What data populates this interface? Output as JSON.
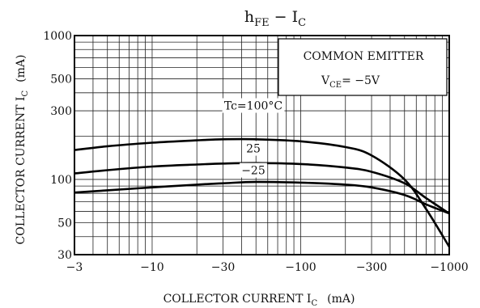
{
  "chart_data": {
    "type": "line",
    "title": {
      "main": "h",
      "main_sub": "FE",
      "sep": " − I",
      "sep_sub": "C"
    },
    "xlabel": {
      "main": "COLLECTOR CURRENT   I",
      "sub": "C",
      "unit": "(mA)"
    },
    "ylabel": {
      "main": "COLLECTOR CURRENT   I",
      "sub": "C",
      "unit": "(mA)"
    },
    "x_scale": "log",
    "x_direction": "magnitude increases to the right (negative currents)",
    "xlim": [
      -3,
      -1000
    ],
    "ylim": [
      30,
      1000
    ],
    "y_scale": "log",
    "x_ticks": [
      -3,
      -10,
      -30,
      -100,
      -300,
      -1000
    ],
    "x_tick_labels": [
      "−3",
      "−10",
      "−30",
      "−100",
      "−300",
      "−1000"
    ],
    "y_ticks": [
      30,
      50,
      100,
      300,
      500,
      1000
    ],
    "y_tick_labels": [
      "30",
      "50",
      "100",
      "300",
      "500",
      "1000"
    ],
    "grid": true,
    "legend_box": {
      "line1": "COMMON EMITTER",
      "line2_main": "V",
      "line2_sub": "CE",
      "line2_rest": "= −5V"
    },
    "series": [
      {
        "name": "Tc=100°C",
        "label": "Tc=100°C",
        "x": [
          -3,
          -5,
          -10,
          -20,
          -30,
          -50,
          -100,
          -200,
          -300,
          -500,
          -700,
          -1000
        ],
        "y": [
          160,
          170,
          180,
          187,
          190,
          190,
          184,
          168,
          147,
          100,
          62,
          34
        ]
      },
      {
        "name": "25",
        "label": "25",
        "x": [
          -3,
          -5,
          -10,
          -20,
          -30,
          -50,
          -100,
          -200,
          -300,
          -500,
          -700,
          -1000
        ],
        "y": [
          110,
          116,
          123,
          127,
          129,
          130,
          128,
          121,
          113,
          94,
          74,
          58
        ]
      },
      {
        "name": "−25",
        "label": "−25",
        "x": [
          -3,
          -5,
          -10,
          -20,
          -30,
          -50,
          -100,
          -200,
          -300,
          -500,
          -700,
          -1000
        ],
        "y": [
          81,
          84,
          88,
          92,
          94,
          96,
          95,
          92,
          88,
          78,
          67,
          58
        ]
      }
    ]
  }
}
